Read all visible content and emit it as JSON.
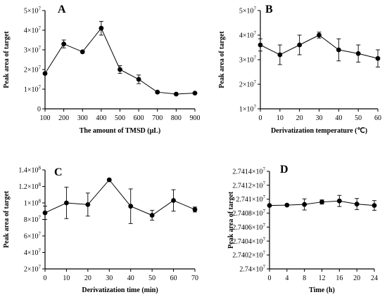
{
  "chart_data": [
    {
      "type": "line",
      "panel_label": "A",
      "xlabel": "The amount of TMSD (μL)",
      "ylabel": "Peak area of target",
      "x": [
        100,
        200,
        300,
        400,
        500,
        600,
        700,
        800,
        900
      ],
      "y": [
        18000000,
        33000000,
        29000000,
        41000000,
        20000000,
        15000000,
        8500000,
        7500000,
        8000000
      ],
      "yerr": [
        0,
        2000000,
        0,
        3500000,
        2000000,
        2200000,
        0,
        0,
        0
      ],
      "xlim": [
        100,
        900
      ],
      "ylim": [
        0,
        50000000
      ],
      "xticks": [
        "100",
        "200",
        "300",
        "400",
        "500",
        "600",
        "700",
        "800",
        "900"
      ],
      "yticks": [
        {
          "base": "0",
          "exp": ""
        },
        {
          "base": "1×10",
          "exp": "7"
        },
        {
          "base": "2×10",
          "exp": "7"
        },
        {
          "base": "3×10",
          "exp": "7"
        },
        {
          "base": "4×10",
          "exp": "7"
        },
        {
          "base": "5×10",
          "exp": "7"
        }
      ]
    },
    {
      "type": "line",
      "panel_label": "B",
      "xlabel": "Derivatization temperature (℃)",
      "ylabel": "Peak area of target",
      "x": [
        0,
        10,
        20,
        30,
        40,
        50,
        60
      ],
      "y": [
        36000000,
        32000000,
        36000000,
        40000000,
        34000000,
        32500000,
        30500000
      ],
      "yerr": [
        2500000,
        4000000,
        4000000,
        1200000,
        4500000,
        3500000,
        3500000
      ],
      "xlim": [
        0,
        60
      ],
      "ylim": [
        10000000,
        50000000
      ],
      "xticks": [
        "0",
        "10",
        "20",
        "30",
        "40",
        "50",
        "60"
      ],
      "yticks": [
        {
          "base": "1×10",
          "exp": "7"
        },
        {
          "base": "2×10",
          "exp": "7"
        },
        {
          "base": "3×10",
          "exp": "7"
        },
        {
          "base": "4×10",
          "exp": "7"
        },
        {
          "base": "5×10",
          "exp": "7"
        }
      ]
    },
    {
      "type": "line",
      "panel_label": "C",
      "xlabel": "Derivatization time (min)",
      "ylabel": "Peak area of target",
      "x": [
        0,
        10,
        20,
        30,
        40,
        50,
        60,
        70
      ],
      "y": [
        88000000,
        100000000,
        98000000,
        128000000,
        96000000,
        85000000,
        103000000,
        92000000
      ],
      "yerr": [
        8000000,
        19000000,
        14000000,
        0,
        21000000,
        6000000,
        13000000,
        3000000
      ],
      "xlim": [
        0,
        70
      ],
      "ylim": [
        20000000,
        140000000
      ],
      "xticks": [
        "0",
        "10",
        "20",
        "30",
        "40",
        "50",
        "60",
        "70"
      ],
      "yticks": [
        {
          "base": "2×10",
          "exp": "7"
        },
        {
          "base": "4×10",
          "exp": "7"
        },
        {
          "base": "6×10",
          "exp": "7"
        },
        {
          "base": "8×10",
          "exp": "7"
        },
        {
          "base": "1×10",
          "exp": "8"
        },
        {
          "base": "1.2×10",
          "exp": "8"
        },
        {
          "base": "1.4×10",
          "exp": "8"
        }
      ]
    },
    {
      "type": "line",
      "panel_label": "D",
      "xlabel": "Time (h)",
      "ylabel": "Peak area of target",
      "x": [
        0,
        4,
        8,
        12,
        16,
        20,
        24
      ],
      "y": [
        27409100,
        27409150,
        27409250,
        27409600,
        27409750,
        27409300,
        27409100
      ],
      "yerr": [
        0,
        0,
        800,
        300,
        800,
        800,
        700
      ],
      "xlim": [
        0,
        24
      ],
      "ylim": [
        27400000,
        27414000
      ],
      "xticks": [
        "0",
        "4",
        "8",
        "12",
        "16",
        "20",
        "24"
      ],
      "yticks": [
        {
          "base": "2.74×10",
          "exp": "7"
        },
        {
          "base": "2.7402×10",
          "exp": "7"
        },
        {
          "base": "2.7404×10",
          "exp": "7"
        },
        {
          "base": "2.7406×10",
          "exp": "7"
        },
        {
          "base": "2.7408×10",
          "exp": "7"
        },
        {
          "base": "2.741×10",
          "exp": "7"
        },
        {
          "base": "2.7412×10",
          "exp": "7"
        },
        {
          "base": "2.7414×10",
          "exp": "7"
        }
      ]
    }
  ]
}
